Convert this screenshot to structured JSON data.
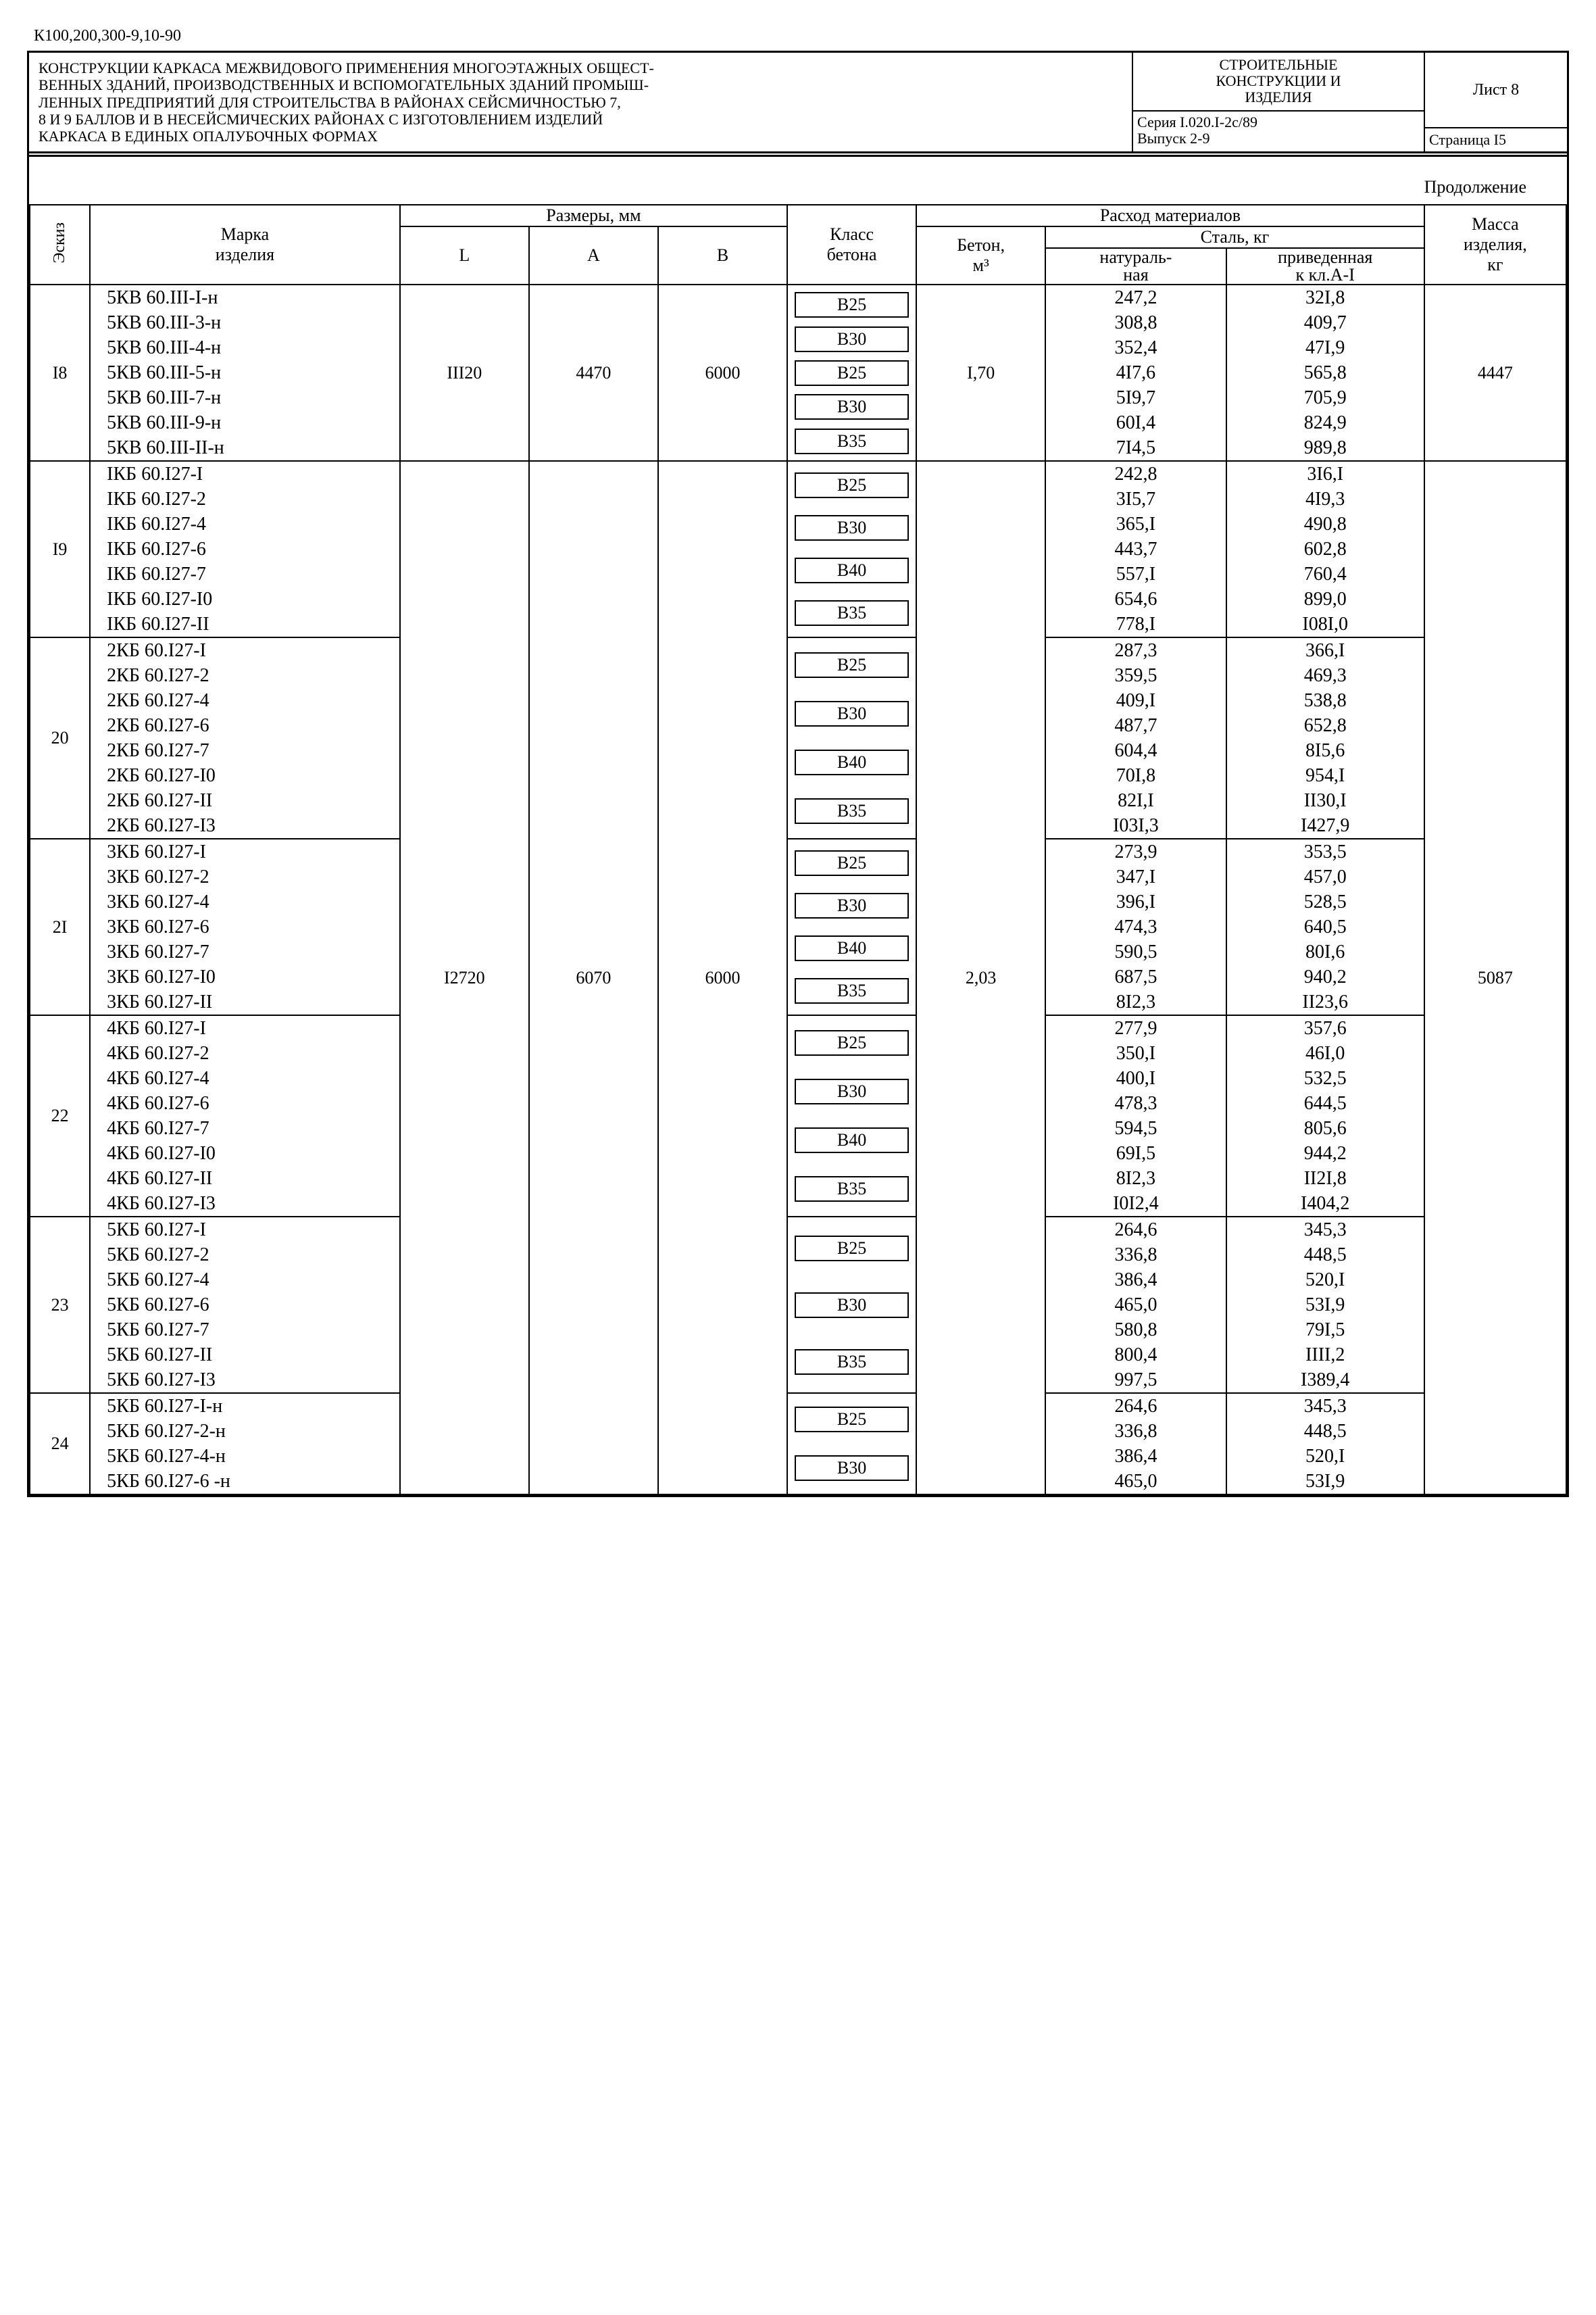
{
  "topcode": "К100,200,300-9,10-90",
  "header": {
    "left": "КОНСТРУКЦИИ КАРКАСА МЕЖВИДОВОГО ПРИМЕНЕНИЯ МНОГОЭТАЖНЫХ ОБЩЕСТ-\nВЕННЫХ ЗДАНИЙ, ПРОИЗВОДСТВЕННЫХ И ВСПОМОГАТЕЛЬНЫХ ЗДАНИЙ ПРОМЫШ-\nЛЕННЫХ ПРЕДПРИЯТИЙ ДЛЯ СТРОИТЕЛЬСТВА В РАЙОНАХ СЕЙСМИЧНОСТЬЮ 7,\n8 и 9 БАЛЛОВ И В НЕСЕЙСМИЧЕСКИХ РАЙОНАХ С ИЗГОТОВЛЕНИЕМ ИЗДЕЛИЙ\nКАРКАСА В ЕДИНЫХ ОПАЛУБОЧНЫХ ФОРМАХ",
    "mid_top": "СТРОИТЕЛЬНЫЕ\nКОНСТРУКЦИИ И\nИЗДЕЛИЯ",
    "mid_bot": "Серия I.020.I-2с/89\nВыпуск 2-9",
    "sheet": "Лист 8",
    "page": "Страница I5"
  },
  "cont": "Продолжение",
  "thead": {
    "eskiz": "Эскиз",
    "marka": "Марка\nизделия",
    "razm": "Размеры, мм",
    "L": "L",
    "A": "A",
    "B": "B",
    "klass": "Класс\nбетона",
    "rashod": "Расход материалов",
    "beton": "Бетон,\nм³",
    "stal": "Сталь, кг",
    "nat": "натураль-\nная",
    "priv": "приведенная\nк кл.А-I",
    "massa": "Масса\nизделия,\nкг"
  },
  "groups": [
    {
      "eskiz": "I8",
      "L": "III20",
      "A": "4470",
      "B": "6000",
      "beton": "I,70",
      "massa": "4447",
      "marks": [
        "5КВ 60.III-I-н",
        "5КВ 60.III-3-н",
        "5КВ 60.III-4-н",
        "5КВ 60.III-5-н",
        "5КВ 60.III-7-н",
        "5КВ 60.III-9-н",
        "5КВ 60.III-II-н"
      ],
      "klass": [
        "В25",
        "В30",
        "В25",
        "В30",
        "В35"
      ],
      "nat": [
        "247,2",
        "308,8",
        "352,4",
        "4I7,6",
        "5I9,7",
        "60I,4",
        "7I4,5"
      ],
      "priv": [
        "32I,8",
        "409,7",
        "47I,9",
        "565,8",
        "705,9",
        "824,9",
        "989,8"
      ],
      "own_dims": true
    },
    {
      "eskiz": "I9",
      "marks": [
        "IКБ 60.I27-I",
        "IКБ 60.I27-2",
        "IКБ 60.I27-4",
        "IКБ 60.I27-6",
        "IКБ 60.I27-7",
        "IКБ 60.I27-I0",
        "IКБ 60.I27-II"
      ],
      "klass": [
        "В25",
        "В30",
        "В40",
        "В35"
      ],
      "nat": [
        "242,8",
        "3I5,7",
        "365,I",
        "443,7",
        "557,I",
        "654,6",
        "778,I"
      ],
      "priv": [
        "3I6,I",
        "4I9,3",
        "490,8",
        "602,8",
        "760,4",
        "899,0",
        "I08I,0"
      ]
    },
    {
      "eskiz": "20",
      "marks": [
        "2КБ 60.I27-I",
        "2КБ 60.I27-2",
        "2КБ 60.I27-4",
        "2КБ 60.I27-6",
        "2КБ 60.I27-7",
        "2КБ 60.I27-I0",
        "2КБ 60.I27-II",
        "2КБ 60.I27-I3"
      ],
      "klass": [
        "В25",
        "В30",
        "В40",
        "В35"
      ],
      "nat": [
        "287,3",
        "359,5",
        "409,I",
        "487,7",
        "604,4",
        "70I,8",
        "82I,I",
        "I03I,3"
      ],
      "priv": [
        "366,I",
        "469,3",
        "538,8",
        "652,8",
        "8I5,6",
        "954,I",
        "II30,I",
        "I427,9"
      ],
      "show_shared": true,
      "shared": {
        "L": "I2720",
        "A": "6070",
        "B": "6000",
        "beton": "2,03",
        "massa": "5087"
      }
    },
    {
      "eskiz": "2I",
      "marks": [
        "3КБ 60.I27-I",
        "3КБ 60.I27-2",
        "3КБ 60.I27-4",
        "3КБ 60.I27-6",
        "3КБ 60.I27-7",
        "3КБ 60.I27-I0",
        "3КБ 60.I27-II"
      ],
      "klass": [
        "В25",
        "В30",
        "В40",
        "В35"
      ],
      "nat": [
        "273,9",
        "347,I",
        "396,I",
        "474,3",
        "590,5",
        "687,5",
        "8I2,3"
      ],
      "priv": [
        "353,5",
        "457,0",
        "528,5",
        "640,5",
        "80I,6",
        "940,2",
        "II23,6"
      ]
    },
    {
      "eskiz": "22",
      "marks": [
        "4КБ 60.I27-I",
        "4КБ 60.I27-2",
        "4КБ 60.I27-4",
        "4КБ 60.I27-6",
        "4КБ 60.I27-7",
        "4КБ 60.I27-I0",
        "4КБ 60.I27-II",
        "4КБ 60.I27-I3"
      ],
      "klass": [
        "В25",
        "В30",
        "В40",
        "В35"
      ],
      "nat": [
        "277,9",
        "350,I",
        "400,I",
        "478,3",
        "594,5",
        "69I,5",
        "8I2,3",
        "I0I2,4"
      ],
      "priv": [
        "357,6",
        "46I,0",
        "532,5",
        "644,5",
        "805,6",
        "944,2",
        "II2I,8",
        "I404,2"
      ]
    },
    {
      "eskiz": "23",
      "marks": [
        "5КБ 60.I27-I",
        "5КБ 60.I27-2",
        "5КБ 60.I27-4",
        "5КБ 60.I27-6",
        "5КБ 60.I27-7",
        "5КБ 60.I27-II",
        "5КБ 60.I27-I3"
      ],
      "klass": [
        "В25",
        "В30",
        "В35"
      ],
      "nat": [
        "264,6",
        "336,8",
        "386,4",
        "465,0",
        "580,8",
        "800,4",
        "997,5"
      ],
      "priv": [
        "345,3",
        "448,5",
        "520,I",
        "53I,9",
        "79I,5",
        "IIII,2",
        "I389,4"
      ]
    },
    {
      "eskiz": "24",
      "marks": [
        "5КБ 60.I27-I-н",
        "5КБ 60.I27-2-н",
        "5КБ 60.I27-4-н",
        "5КБ 60.I27-6 -н"
      ],
      "klass": [
        "В25",
        "В30"
      ],
      "nat": [
        "264,6",
        "336,8",
        "386,4",
        "465,0"
      ],
      "priv": [
        "345,3",
        "448,5",
        "520,I",
        "53I,9"
      ]
    }
  ]
}
